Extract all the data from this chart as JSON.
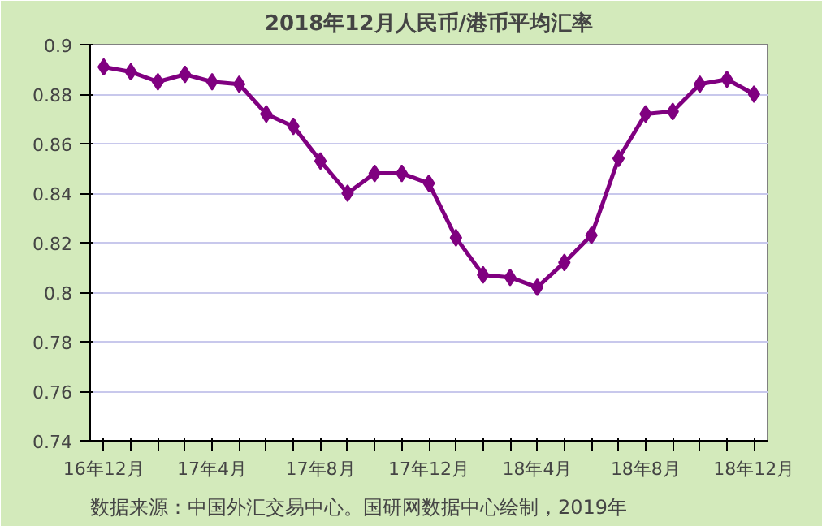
{
  "chart_data": {
    "type": "line",
    "title": "2018年12月人民币/港币平均汇率",
    "categories": [
      "16年12月",
      null,
      null,
      null,
      "17年4月",
      null,
      null,
      null,
      "17年8月",
      null,
      null,
      null,
      "17年12月",
      null,
      null,
      null,
      "18年4月",
      null,
      null,
      null,
      "18年8月",
      null,
      null,
      null,
      "18年12月"
    ],
    "series": [
      {
        "color": "#800080",
        "values": [
          0.891,
          0.889,
          0.885,
          0.888,
          0.885,
          0.884,
          0.872,
          0.867,
          0.853,
          0.84,
          0.848,
          0.848,
          0.844,
          0.822,
          0.807,
          0.806,
          0.802,
          0.812,
          0.823,
          0.854,
          0.872,
          0.873,
          0.884,
          0.886,
          0.88
        ]
      }
    ],
    "ylim": [
      0.74,
      0.9
    ],
    "yticks": [
      0.74,
      0.76,
      0.78,
      0.8,
      0.82,
      0.84,
      0.86,
      0.88,
      0.9
    ],
    "grid": "y",
    "marker": "diamond",
    "line_style": "solid",
    "annotations": [
      "数据来源：中国外汇交易中心。国研网数据中心绘制，2019年"
    ]
  }
}
